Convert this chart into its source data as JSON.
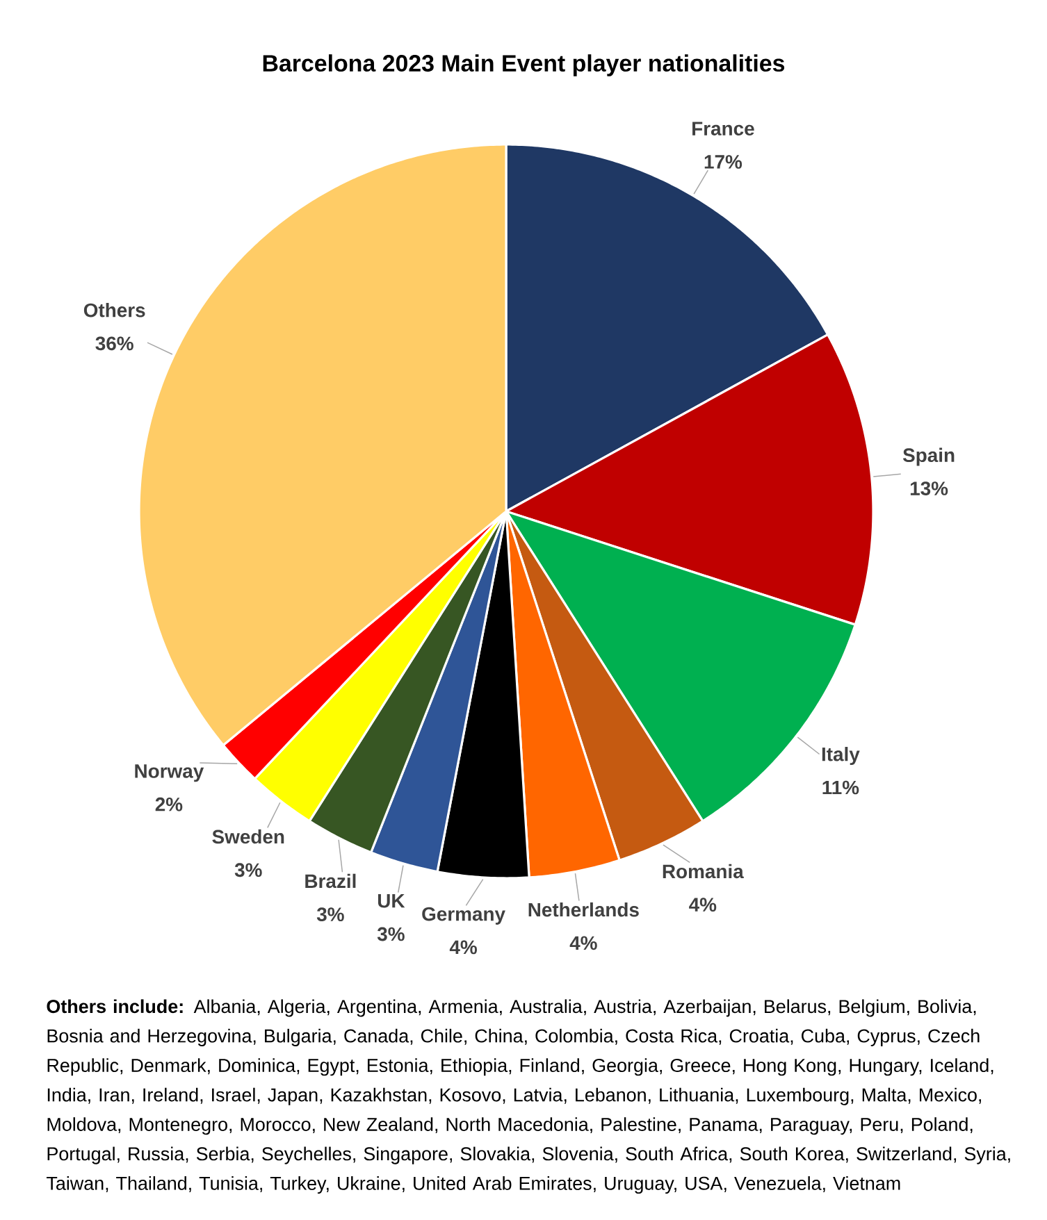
{
  "chart_data": {
    "type": "pie",
    "title": "Barcelona 2023 Main Event player nationalities",
    "categories": [
      "France",
      "Spain",
      "Italy",
      "Romania",
      "Netherlands",
      "Germany",
      "UK",
      "Brazil",
      "Sweden",
      "Norway",
      "Others"
    ],
    "values": [
      17,
      13,
      11,
      4,
      4,
      4,
      3,
      3,
      3,
      2,
      36
    ],
    "value_labels": [
      "17%",
      "13%",
      "11%",
      "4%",
      "4%",
      "4%",
      "3%",
      "3%",
      "3%",
      "2%",
      "36%"
    ],
    "colors": [
      "#1f3864",
      "#c00000",
      "#00b050",
      "#c55a11",
      "#ff6600",
      "#000000",
      "#2f5597",
      "#375623",
      "#ffff00",
      "#ff0000",
      "#ffcc66"
    ],
    "annotations": [
      "**Others include:** Albania, Algeria, Argentina, Armenia, Australia, Austria, Azerbaijan, Belarus, Belgium, Bolivia, Bosnia and Herzegovina, Bulgaria, Canada, Chile, China, Colombia, Costa Rica, Croatia, Cuba, Cyprus, Czech Republic, Denmark, Dominica, Egypt, Estonia, Ethiopia, Finland, Georgia, Greece, Hong Kong, Hungary, Iceland, India, Iran, Ireland, Israel, Japan, Kazakhstan, Kosovo, Latvia, Lebanon, Lithuania, Luxembourg, Malta, Mexico, Moldova, Montenegro, Morocco, New Zealand, North Macedonia, Palestine, Panama, Paraguay, Peru, Poland, Portugal, Russia, Serbia, Seychelles, Singapore, Slovakia, Slovenia, South Africa, South Korea, Switzerland, Syria, Taiwan, Thailand, Tunisia, Turkey, Ukraine, United Arab Emirates, Uruguay, USA, Venezuela, Vietnam"
    ]
  }
}
